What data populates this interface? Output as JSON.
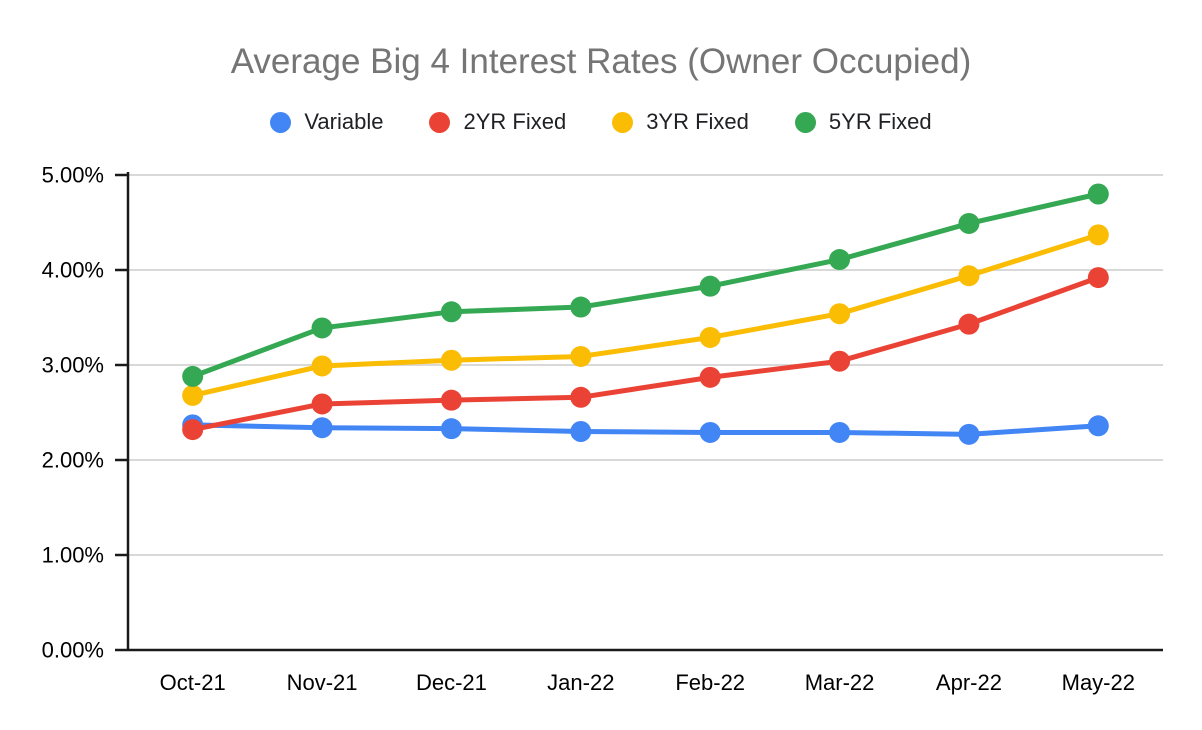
{
  "page": {
    "background": "#ffffff"
  },
  "chart_data": {
    "type": "line",
    "title": "Average Big 4 Interest Rates (Owner Occupied)",
    "title_color": "#757575",
    "categories": [
      "Oct-21",
      "Nov-21",
      "Dec-21",
      "Jan-22",
      "Feb-22",
      "Mar-22",
      "Apr-22",
      "May-22"
    ],
    "series": [
      {
        "name": "Variable",
        "color": "#4285F4",
        "values": [
          2.37,
          2.34,
          2.33,
          2.3,
          2.29,
          2.29,
          2.27,
          2.36
        ]
      },
      {
        "name": "2YR Fixed",
        "color": "#EA4335",
        "values": [
          2.32,
          2.59,
          2.63,
          2.66,
          2.87,
          3.04,
          3.43,
          3.92
        ]
      },
      {
        "name": "3YR Fixed",
        "color": "#FBBC04",
        "values": [
          2.68,
          2.99,
          3.05,
          3.09,
          3.29,
          3.54,
          3.94,
          4.37
        ]
      },
      {
        "name": "5YR Fixed",
        "color": "#34A853",
        "values": [
          2.88,
          3.39,
          3.56,
          3.61,
          3.83,
          4.11,
          4.49,
          4.8
        ]
      }
    ],
    "xlabel": "",
    "ylabel": "",
    "ylim": [
      0,
      5
    ],
    "yticks": [
      {
        "value": 0,
        "label": "0.00%"
      },
      {
        "value": 1,
        "label": "1.00%"
      },
      {
        "value": 2,
        "label": "2.00%"
      },
      {
        "value": 3,
        "label": "3.00%"
      },
      {
        "value": 4,
        "label": "4.00%"
      },
      {
        "value": 5,
        "label": "5.00%"
      }
    ],
    "grid": true,
    "legend_position": "top",
    "marker": "circle",
    "colors": {
      "gridline": "#d9d9d9",
      "axis": "#1a1a1a",
      "tick_label": "#000000",
      "legend_text": "#202124"
    }
  }
}
